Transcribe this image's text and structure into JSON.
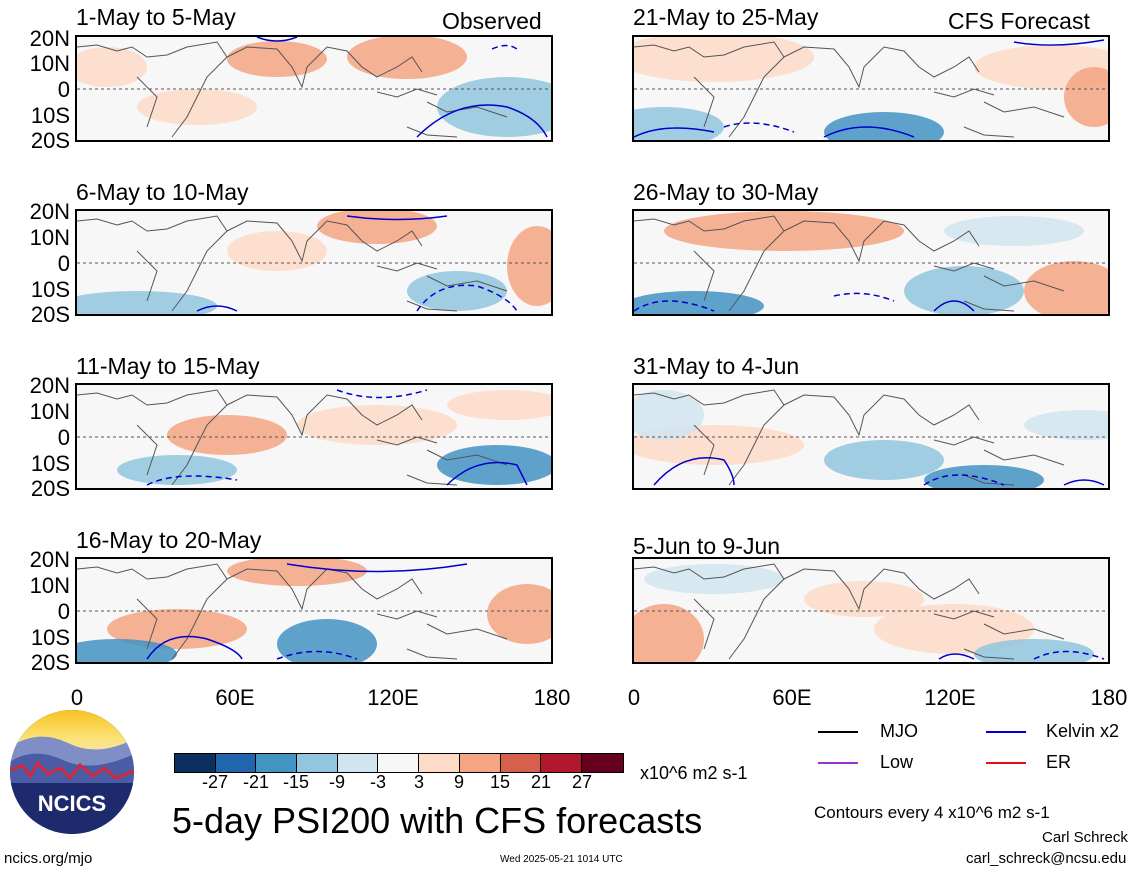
{
  "observed_label": "Observed",
  "forecast_label": "CFS Forecast",
  "lat_ticks": [
    "20N",
    "10N",
    "0",
    "10S",
    "20S"
  ],
  "lon_ticks": [
    "0",
    "60E",
    "120E",
    "180"
  ],
  "panels": [
    {
      "title": "1-May to 5-May"
    },
    {
      "title": "6-May to 10-May"
    },
    {
      "title": "11-May to 15-May"
    },
    {
      "title": "16-May to 20-May"
    },
    {
      "title": "21-May to 25-May"
    },
    {
      "title": "26-May to 30-May"
    },
    {
      "title": "31-May to 4-Jun"
    },
    {
      "title": "5-Jun to 9-Jun"
    }
  ],
  "colorbar": {
    "labels": [
      "-27",
      "-21",
      "-15",
      "-9",
      "-3",
      "3",
      "9",
      "15",
      "21",
      "27"
    ],
    "colors": [
      "#0b2f5e",
      "#2166ac",
      "#4393c3",
      "#92c5de",
      "#d1e5f0",
      "#f7f7f7",
      "#fddbc7",
      "#f4a582",
      "#d6604d",
      "#b2182b",
      "#67001f"
    ],
    "units": "x10^6 m2 s-1"
  },
  "main_title": "5-day PSI200 with CFS forecasts",
  "legend": [
    {
      "label": "MJO",
      "color": "#000000"
    },
    {
      "label": "Kelvin x2",
      "color": "#0000cc"
    },
    {
      "label": "Low",
      "color": "#9933cc"
    },
    {
      "label": "ER",
      "color": "#e01010"
    }
  ],
  "contour_note": "Contours every 4 x10^6 m2 s-1",
  "author": "Carl Schreck",
  "email": "carl_schreck@ncsu.edu",
  "website": "ncics.org/mjo",
  "timestamp": "Wed 2025-05-21 1014 UTC",
  "logo_text": "NCICS"
}
